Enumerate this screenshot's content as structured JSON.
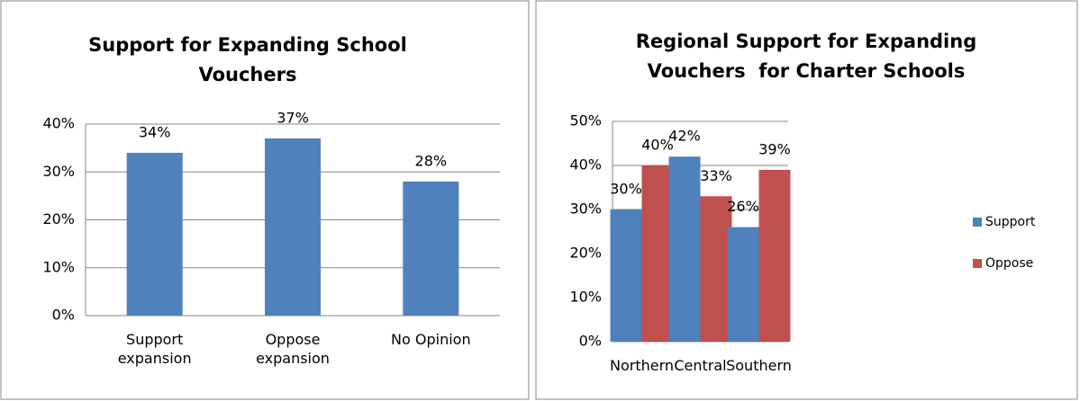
{
  "chart_data": [
    {
      "type": "bar",
      "title": "Support for Expanding School Vouchers",
      "categories": [
        "Support expansion",
        "Oppose expansion",
        "No Opinion"
      ],
      "values": [
        34,
        37,
        28
      ],
      "value_labels": [
        "34%",
        "37%",
        "28%"
      ],
      "color": "#4f81bd",
      "ylim": [
        0,
        40
      ],
      "yticks": [
        {
          "value": 0,
          "label": "0%"
        },
        {
          "value": 10,
          "label": "10%"
        },
        {
          "value": 20,
          "label": "20%"
        },
        {
          "value": 30,
          "label": "30%"
        },
        {
          "value": 40,
          "label": "40%"
        }
      ],
      "grid": true
    },
    {
      "type": "grouped_bar",
      "title": "Regional Support for Expanding Vouchers  for Charter Schools",
      "categories": [
        "Northern",
        "Central",
        "Southern"
      ],
      "series": [
        {
          "name": "Support",
          "color": "#4f81bd",
          "values": [
            30,
            42,
            26
          ],
          "value_labels": [
            "30%",
            "42%",
            "26%"
          ]
        },
        {
          "name": "Oppose",
          "color": "#c0504d",
          "values": [
            40,
            33,
            39
          ],
          "value_labels": [
            "40%",
            "33%",
            "39%"
          ]
        }
      ],
      "ylim": [
        0,
        50
      ],
      "yticks": [
        {
          "value": 0,
          "label": "0%"
        },
        {
          "value": 10,
          "label": "10%"
        },
        {
          "value": 20,
          "label": "20%"
        },
        {
          "value": 30,
          "label": "30%"
        },
        {
          "value": 40,
          "label": "40%"
        },
        {
          "value": 50,
          "label": "50%"
        }
      ],
      "grid": true,
      "legend": "right"
    }
  ]
}
